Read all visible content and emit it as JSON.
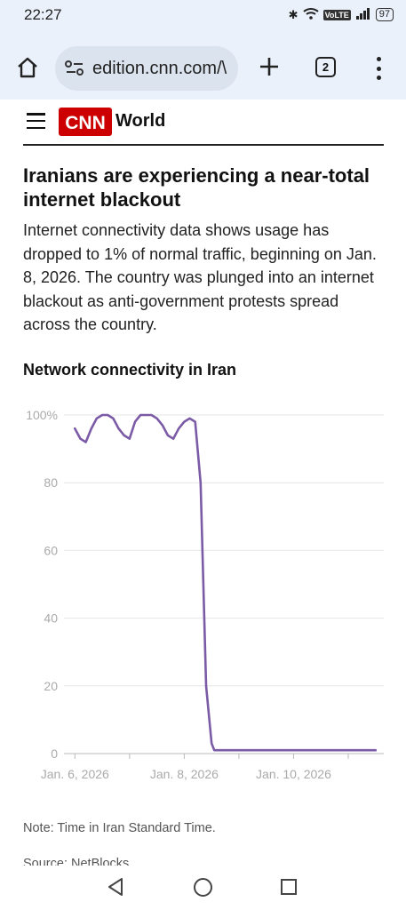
{
  "status_bar": {
    "time": "22:27",
    "network": "VoLTE",
    "battery": "97"
  },
  "browser": {
    "url": "edition.cnn.com/\\",
    "tab_count": "2"
  },
  "site": {
    "logo_text": "CNN",
    "section": "World"
  },
  "article": {
    "headline": "Iranians are experiencing a near-total internet blackout",
    "dek": "Internet connectivity data shows usage has dropped to 1% of normal traffic, beginning on Jan. 8, 2026. The country was plunged into an internet blackout as anti-government protests spread across the country.",
    "chart_heading": "Network connectivity in Iran",
    "note": "Note: Time in Iran Standard Time.",
    "source": "Source: NetBlocks"
  },
  "chart_data": {
    "type": "line",
    "y_ticks": [
      "100%",
      "80",
      "60",
      "40",
      "20",
      "0"
    ],
    "y_tick_values": [
      100,
      80,
      60,
      40,
      20,
      0
    ],
    "x_ticks": [
      "Jan. 6, 2026",
      "Jan. 8, 2026",
      "Jan. 10, 2026"
    ],
    "x_tick_values": [
      6,
      8,
      10
    ],
    "ylim": [
      0,
      100
    ],
    "xlim": [
      5.8,
      11.65
    ],
    "series_color": "#7b5aa6",
    "series": [
      {
        "x": [
          6.0,
          6.1,
          6.2,
          6.3,
          6.4,
          6.5,
          6.6,
          6.7,
          6.8,
          6.9,
          7.0,
          7.1,
          7.2,
          7.3,
          7.4,
          7.5,
          7.6,
          7.7,
          7.8,
          7.9,
          8.0,
          8.1,
          8.2,
          8.3,
          8.4,
          8.5,
          8.55,
          8.62,
          8.65,
          8.7,
          8.8,
          9.0,
          9.5,
          10.0,
          10.5,
          11.0,
          11.5
        ],
        "y": [
          96,
          93,
          92,
          96,
          99,
          100,
          100,
          99,
          96,
          94,
          93,
          98,
          100,
          100,
          100,
          99,
          97,
          94,
          93,
          96,
          98,
          99,
          98,
          80,
          20,
          3,
          1,
          1,
          1,
          1,
          1,
          1,
          1,
          1,
          1,
          1,
          1
        ]
      }
    ]
  }
}
